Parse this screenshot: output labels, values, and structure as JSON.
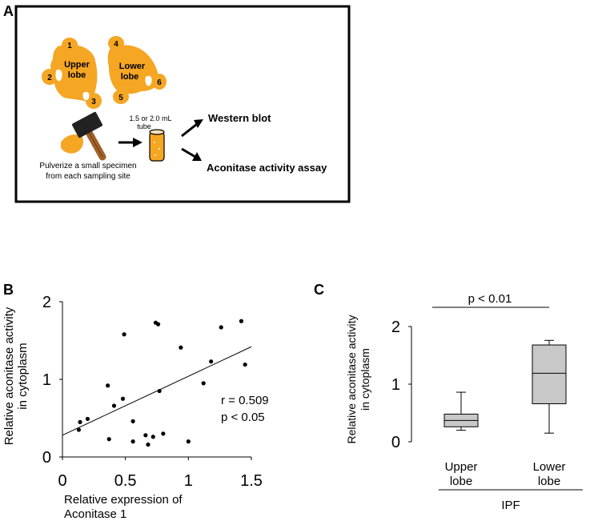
{
  "panels": {
    "a": {
      "letter": "A"
    },
    "b": {
      "letter": "B"
    },
    "c": {
      "letter": "C"
    }
  },
  "schematic": {
    "site_numbers": [
      "1",
      "2",
      "3",
      "4",
      "5",
      "6"
    ],
    "upper_lobe": [
      "Upper",
      "lobe"
    ],
    "lower_lobe": [
      "Lower",
      "lobe"
    ],
    "tube_label": [
      "1.5 or 2.0 mL",
      "tube"
    ],
    "western_blot": "Western blot",
    "aconitase_assay": "Aconitase activity assay",
    "pulverize_caption": [
      "Pulverize a small specimen",
      "from each sampling site"
    ],
    "colors": {
      "tissue": "#f5a623",
      "outline": "#000000"
    },
    "icons": [
      "lung-lobe-icon",
      "hammer-icon",
      "tube-icon",
      "arrow-icon"
    ]
  },
  "chart_data": [
    {
      "type": "scatter",
      "panel": "B",
      "xlabel": [
        "Relative expression of",
        "Aconitase 1"
      ],
      "ylabel": [
        "Relative aconitase activity",
        "in cytoplasm"
      ],
      "xlim": [
        0,
        1.5
      ],
      "ylim": [
        0,
        2
      ],
      "x_ticks": [
        0,
        0.5,
        1,
        1.5
      ],
      "x_tick_labels": [
        "0",
        "0.5",
        "1",
        "1.5"
      ],
      "y_ticks": [
        0,
        1,
        2
      ],
      "y_tick_labels": [
        "0",
        "1",
        "2"
      ],
      "points": [
        [
          0.13,
          0.35
        ],
        [
          0.14,
          0.45
        ],
        [
          0.2,
          0.49
        ],
        [
          0.37,
          0.23
        ],
        [
          0.36,
          0.92
        ],
        [
          0.41,
          0.66
        ],
        [
          0.48,
          0.75
        ],
        [
          0.49,
          1.58
        ],
        [
          0.56,
          0.46
        ],
        [
          0.56,
          0.2
        ],
        [
          0.66,
          0.28
        ],
        [
          0.68,
          0.16
        ],
        [
          0.72,
          0.26
        ],
        [
          0.74,
          1.73
        ],
        [
          0.76,
          1.71
        ],
        [
          0.77,
          0.85
        ],
        [
          0.8,
          0.3
        ],
        [
          0.94,
          1.41
        ],
        [
          1.0,
          0.2
        ],
        [
          1.12,
          0.95
        ],
        [
          1.18,
          1.23
        ],
        [
          1.26,
          1.67
        ],
        [
          1.42,
          1.75
        ],
        [
          1.45,
          1.19
        ]
      ],
      "fit_line": {
        "x": [
          0,
          1.5
        ],
        "y": [
          0.28,
          1.42
        ]
      },
      "stats": [
        "r = 0.509",
        "p < 0.05"
      ]
    },
    {
      "type": "box",
      "panel": "C",
      "ylabel": [
        "Relative aconitase activity",
        "in cytoplasm"
      ],
      "ylim": [
        0,
        2
      ],
      "y_ticks": [
        0,
        1,
        2
      ],
      "y_tick_labels": [
        "0",
        "1",
        "2"
      ],
      "categories": [
        [
          "Upper",
          "lobe"
        ],
        [
          "Lower",
          "lobe"
        ]
      ],
      "group_label": "IPF",
      "significance": "p < 0.01",
      "boxes": [
        {
          "min": 0.2,
          "q1": 0.26,
          "median": 0.37,
          "q3": 0.48,
          "max": 0.86
        },
        {
          "min": 0.15,
          "q1": 0.66,
          "median": 1.19,
          "q3": 1.68,
          "max": 1.76
        }
      ],
      "box_color": "#c8c8c8"
    }
  ]
}
